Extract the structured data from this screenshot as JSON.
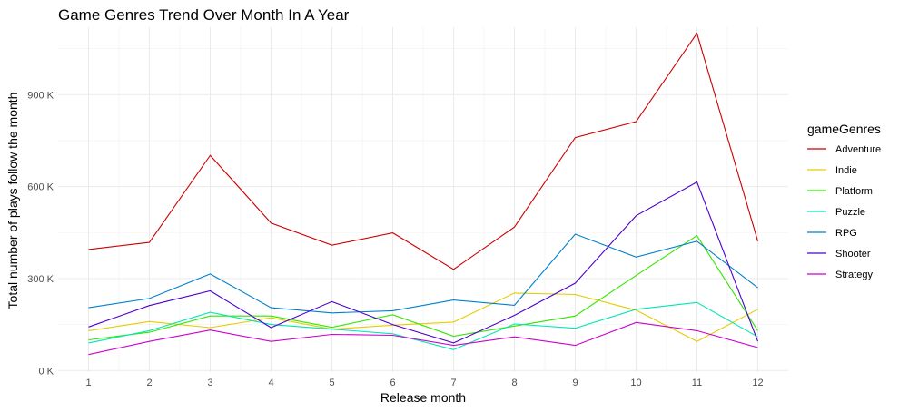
{
  "chart_data": {
    "type": "line",
    "title": "Game Genres Trend Over Month In A Year",
    "xlabel": "Release month",
    "ylabel": "Total number of plays follow the month",
    "x": [
      1,
      2,
      3,
      4,
      5,
      6,
      7,
      8,
      9,
      10,
      11,
      12
    ],
    "x_ticks": [
      "1",
      "2",
      "3",
      "4",
      "5",
      "6",
      "7",
      "8",
      "9",
      "10",
      "11",
      "12"
    ],
    "y_ticks": [
      {
        "value": 0,
        "label": "0 K"
      },
      {
        "value": 300000,
        "label": "300 K"
      },
      {
        "value": 600000,
        "label": "600 K"
      },
      {
        "value": 900000,
        "label": "900 K"
      }
    ],
    "ylim": [
      -5000,
      1120000
    ],
    "xlim": [
      0.5,
      12.5
    ],
    "grid": true,
    "legend": {
      "title": "gameGenres",
      "position": "right"
    },
    "series": [
      {
        "name": "Adventure",
        "color": "#CC0000",
        "values": [
          395000,
          418000,
          702000,
          481000,
          409000,
          449000,
          330000,
          468000,
          760000,
          812000,
          1100000,
          422000
        ]
      },
      {
        "name": "Indie",
        "color": "#E6CC00",
        "values": [
          130000,
          160000,
          140000,
          172000,
          135000,
          148000,
          158000,
          253000,
          248000,
          197000,
          95000,
          200000
        ]
      },
      {
        "name": "Platform",
        "color": "#33E600",
        "values": [
          100000,
          125000,
          178000,
          178000,
          141000,
          182000,
          112000,
          145000,
          178000,
          310000,
          440000,
          130000
        ]
      },
      {
        "name": "Puzzle",
        "color": "#00E6B2",
        "values": [
          90000,
          130000,
          190000,
          150000,
          135000,
          120000,
          68000,
          152000,
          138000,
          200000,
          222000,
          110000
        ]
      },
      {
        "name": "RPG",
        "color": "#0080CC",
        "values": [
          205000,
          235000,
          315000,
          205000,
          188000,
          195000,
          230000,
          213000,
          445000,
          370000,
          422000,
          270000
        ]
      },
      {
        "name": "Shooter",
        "color": "#4C00CC",
        "values": [
          142000,
          212000,
          260000,
          140000,
          225000,
          150000,
          90000,
          180000,
          285000,
          505000,
          615000,
          95000
        ]
      },
      {
        "name": "Strategy",
        "color": "#CC00CC",
        "values": [
          52000,
          95000,
          132000,
          95000,
          118000,
          115000,
          82000,
          110000,
          82000,
          157000,
          130000,
          75000
        ]
      }
    ]
  }
}
